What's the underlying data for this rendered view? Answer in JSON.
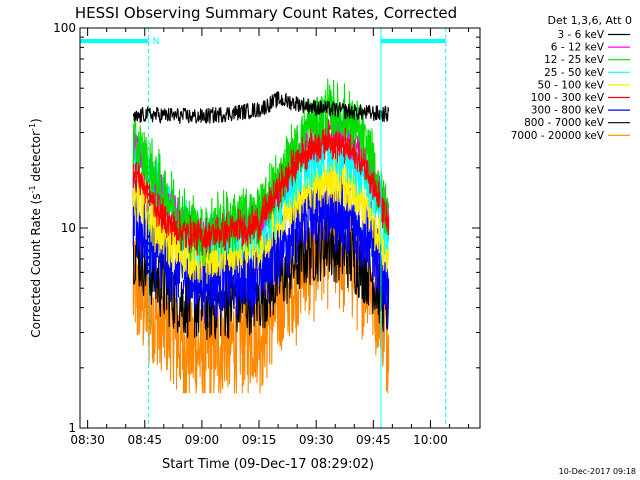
{
  "chart_data": {
    "type": "line",
    "title": "HESSI Observing Summary Count Rates, Corrected",
    "xlabel": "Start Time (09-Dec-17 08:29:02)",
    "ylabel_main": "Corrected Count Rate (s",
    "ylabel_sup1": "-1",
    "ylabel_mid": " detector",
    "ylabel_sup2": "-1",
    "ylabel_end": ")",
    "yscale": "log",
    "ylim": [
      1,
      100
    ],
    "xlim_minutes": [
      -2,
      103
    ],
    "yticks": [
      {
        "value": 1,
        "label": "1"
      },
      {
        "value": 10,
        "label": "10"
      },
      {
        "value": 100,
        "label": "100"
      }
    ],
    "xticks": [
      {
        "minute": 0,
        "label": "08:30"
      },
      {
        "minute": 15,
        "label": "08:45"
      },
      {
        "minute": 30,
        "label": "09:00"
      },
      {
        "minute": 45,
        "label": "09:15"
      },
      {
        "minute": 60,
        "label": "09:30"
      },
      {
        "minute": 75,
        "label": "09:45"
      },
      {
        "minute": 90,
        "label": "10:00"
      }
    ],
    "legend_title": "Det 1,3,6, Att 0",
    "legend_placement": "right",
    "timestamp": "10-Dec-2017 09:18",
    "night_label": "N",
    "night_bars": [
      {
        "start_minute": -2,
        "end_minute": 16
      },
      {
        "start_minute": 77,
        "end_minute": 94
      }
    ],
    "vlines_solid_minutes": [
      -2,
      77
    ],
    "vlines_dashed_minutes": [
      16,
      94
    ],
    "series": [
      {
        "name": "3 - 6 keV",
        "color": "#000000",
        "noise": 0.04,
        "spread": 0.0,
        "min": 0,
        "points": [
          [
            12,
            35
          ],
          [
            15,
            37
          ],
          [
            30,
            36
          ],
          [
            45,
            39
          ],
          [
            50,
            44
          ],
          [
            60,
            40
          ],
          [
            70,
            38
          ],
          [
            79,
            37
          ]
        ]
      },
      {
        "name": "6 - 12 keV",
        "color": "#ff00ff",
        "noise": 0.08,
        "spread": 0.0,
        "min": 0,
        "points": [
          [
            12,
            26
          ],
          [
            20,
            15
          ],
          [
            25,
            11
          ],
          [
            30,
            9.5
          ],
          [
            45,
            11
          ],
          [
            52,
            17
          ],
          [
            57,
            25
          ],
          [
            63,
            30
          ],
          [
            68,
            28
          ],
          [
            74,
            21
          ],
          [
            79,
            12
          ]
        ]
      },
      {
        "name": "12 - 25 keV",
        "color": "#00dd00",
        "noise": 0.12,
        "spread": 0.06,
        "min": 0,
        "points": [
          [
            12,
            27
          ],
          [
            20,
            15
          ],
          [
            25,
            11
          ],
          [
            30,
            9.5
          ],
          [
            45,
            12
          ],
          [
            52,
            20
          ],
          [
            57,
            30
          ],
          [
            63,
            38
          ],
          [
            68,
            35
          ],
          [
            74,
            24
          ],
          [
            79,
            11
          ]
        ]
      },
      {
        "name": "25 - 50 keV",
        "color": "#00ffff",
        "noise": 0.1,
        "spread": 0.05,
        "min": 0,
        "points": [
          [
            12,
            25
          ],
          [
            20,
            14
          ],
          [
            25,
            10.5
          ],
          [
            30,
            9
          ],
          [
            45,
            10
          ],
          [
            52,
            15
          ],
          [
            57,
            20
          ],
          [
            63,
            24
          ],
          [
            68,
            22
          ],
          [
            74,
            17
          ],
          [
            79,
            9
          ]
        ]
      },
      {
        "name": "50 - 100 keV",
        "color": "#ffee00",
        "noise": 0.1,
        "spread": 0.04,
        "min": 0,
        "points": [
          [
            12,
            15
          ],
          [
            20,
            9
          ],
          [
            25,
            7.5
          ],
          [
            30,
            7
          ],
          [
            45,
            8
          ],
          [
            52,
            12
          ],
          [
            57,
            15
          ],
          [
            63,
            18
          ],
          [
            68,
            16
          ],
          [
            74,
            12
          ],
          [
            79,
            7.5
          ]
        ]
      },
      {
        "name": "100 - 300 keV",
        "color": "#ff0000",
        "noise": 0.06,
        "spread": 0.04,
        "min": 0,
        "points": [
          [
            12,
            20
          ],
          [
            20,
            11
          ],
          [
            25,
            9.5
          ],
          [
            30,
            9
          ],
          [
            45,
            10.5
          ],
          [
            52,
            18
          ],
          [
            57,
            24
          ],
          [
            63,
            28
          ],
          [
            68,
            25
          ],
          [
            74,
            19
          ],
          [
            79,
            10
          ]
        ]
      },
      {
        "name": "300 - 800 keV",
        "color": "#0000ff",
        "noise": 0.16,
        "spread": 0.06,
        "min": 0,
        "points": [
          [
            12,
            11
          ],
          [
            20,
            7
          ],
          [
            25,
            6
          ],
          [
            30,
            5.5
          ],
          [
            45,
            6
          ],
          [
            52,
            9
          ],
          [
            57,
            11
          ],
          [
            63,
            13
          ],
          [
            68,
            11
          ],
          [
            74,
            9
          ],
          [
            79,
            5
          ]
        ]
      },
      {
        "name": "800 - 7000 keV",
        "color": "#000000",
        "noise": 0.18,
        "spread": 0.0,
        "min": 0,
        "points": [
          [
            12,
            8
          ],
          [
            20,
            5
          ],
          [
            25,
            4.3
          ],
          [
            30,
            4
          ],
          [
            45,
            4.5
          ],
          [
            52,
            6
          ],
          [
            57,
            7.5
          ],
          [
            63,
            8.5
          ],
          [
            68,
            7.5
          ],
          [
            74,
            6
          ],
          [
            79,
            4
          ]
        ]
      },
      {
        "name": "7000 - 20000 keV",
        "color": "#ff8800",
        "noise": 0.24,
        "spread": 0.1,
        "min": 1.5,
        "points": [
          [
            12,
            5
          ],
          [
            20,
            3.2
          ],
          [
            25,
            2.6
          ],
          [
            30,
            2.4
          ],
          [
            45,
            3
          ],
          [
            52,
            4.5
          ],
          [
            57,
            6.5
          ],
          [
            63,
            8.5
          ],
          [
            68,
            7.5
          ],
          [
            74,
            5.5
          ],
          [
            79,
            3
          ]
        ]
      }
    ]
  }
}
